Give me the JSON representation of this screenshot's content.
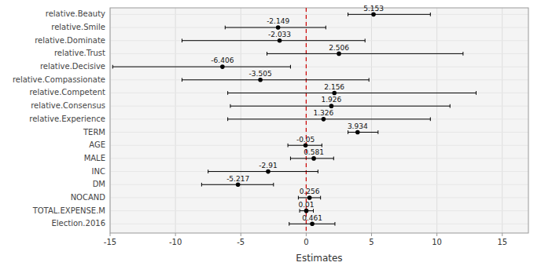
{
  "chart_data": {
    "type": "forest",
    "categories": [
      "relative.Beauty",
      "relative.Smile",
      "relative.Dominate",
      "relative.Trust",
      "relative.Decisive",
      "relative.Compassionate",
      "relative.Competent",
      "relative.Consensus",
      "relative.Experience",
      "TERM",
      "AGE",
      "MALE",
      "INC",
      "DM",
      "NOCAND",
      "TOTAL.EXPENSE.M",
      "Election.2016"
    ],
    "values": [
      5.153,
      -2.149,
      -2.033,
      2.506,
      -6.406,
      -3.505,
      2.156,
      1.926,
      1.326,
      3.934,
      -0.05,
      0.581,
      -2.91,
      -5.217,
      0.256,
      0.01,
      0.461
    ],
    "ci_low": [
      3.2,
      -6.2,
      -9.5,
      -3.0,
      -14.8,
      -9.5,
      -6.0,
      -5.8,
      -6.0,
      3.2,
      -1.4,
      -1.2,
      -7.5,
      -8.0,
      -0.6,
      -0.5,
      -1.3
    ],
    "ci_high": [
      9.5,
      1.5,
      4.5,
      12.0,
      -1.2,
      4.8,
      13.0,
      11.0,
      9.5,
      5.5,
      1.2,
      2.1,
      0.9,
      -2.5,
      1.1,
      0.55,
      2.2
    ],
    "xlabel": "Estimates",
    "xlim": [
      -15,
      17
    ],
    "xticks": [
      -15,
      -10,
      -5,
      0,
      5,
      10,
      15
    ],
    "reference_line": {
      "x": 0,
      "color": "#cc0000"
    },
    "color": "#000000",
    "grid": true,
    "data_labels": true
  }
}
